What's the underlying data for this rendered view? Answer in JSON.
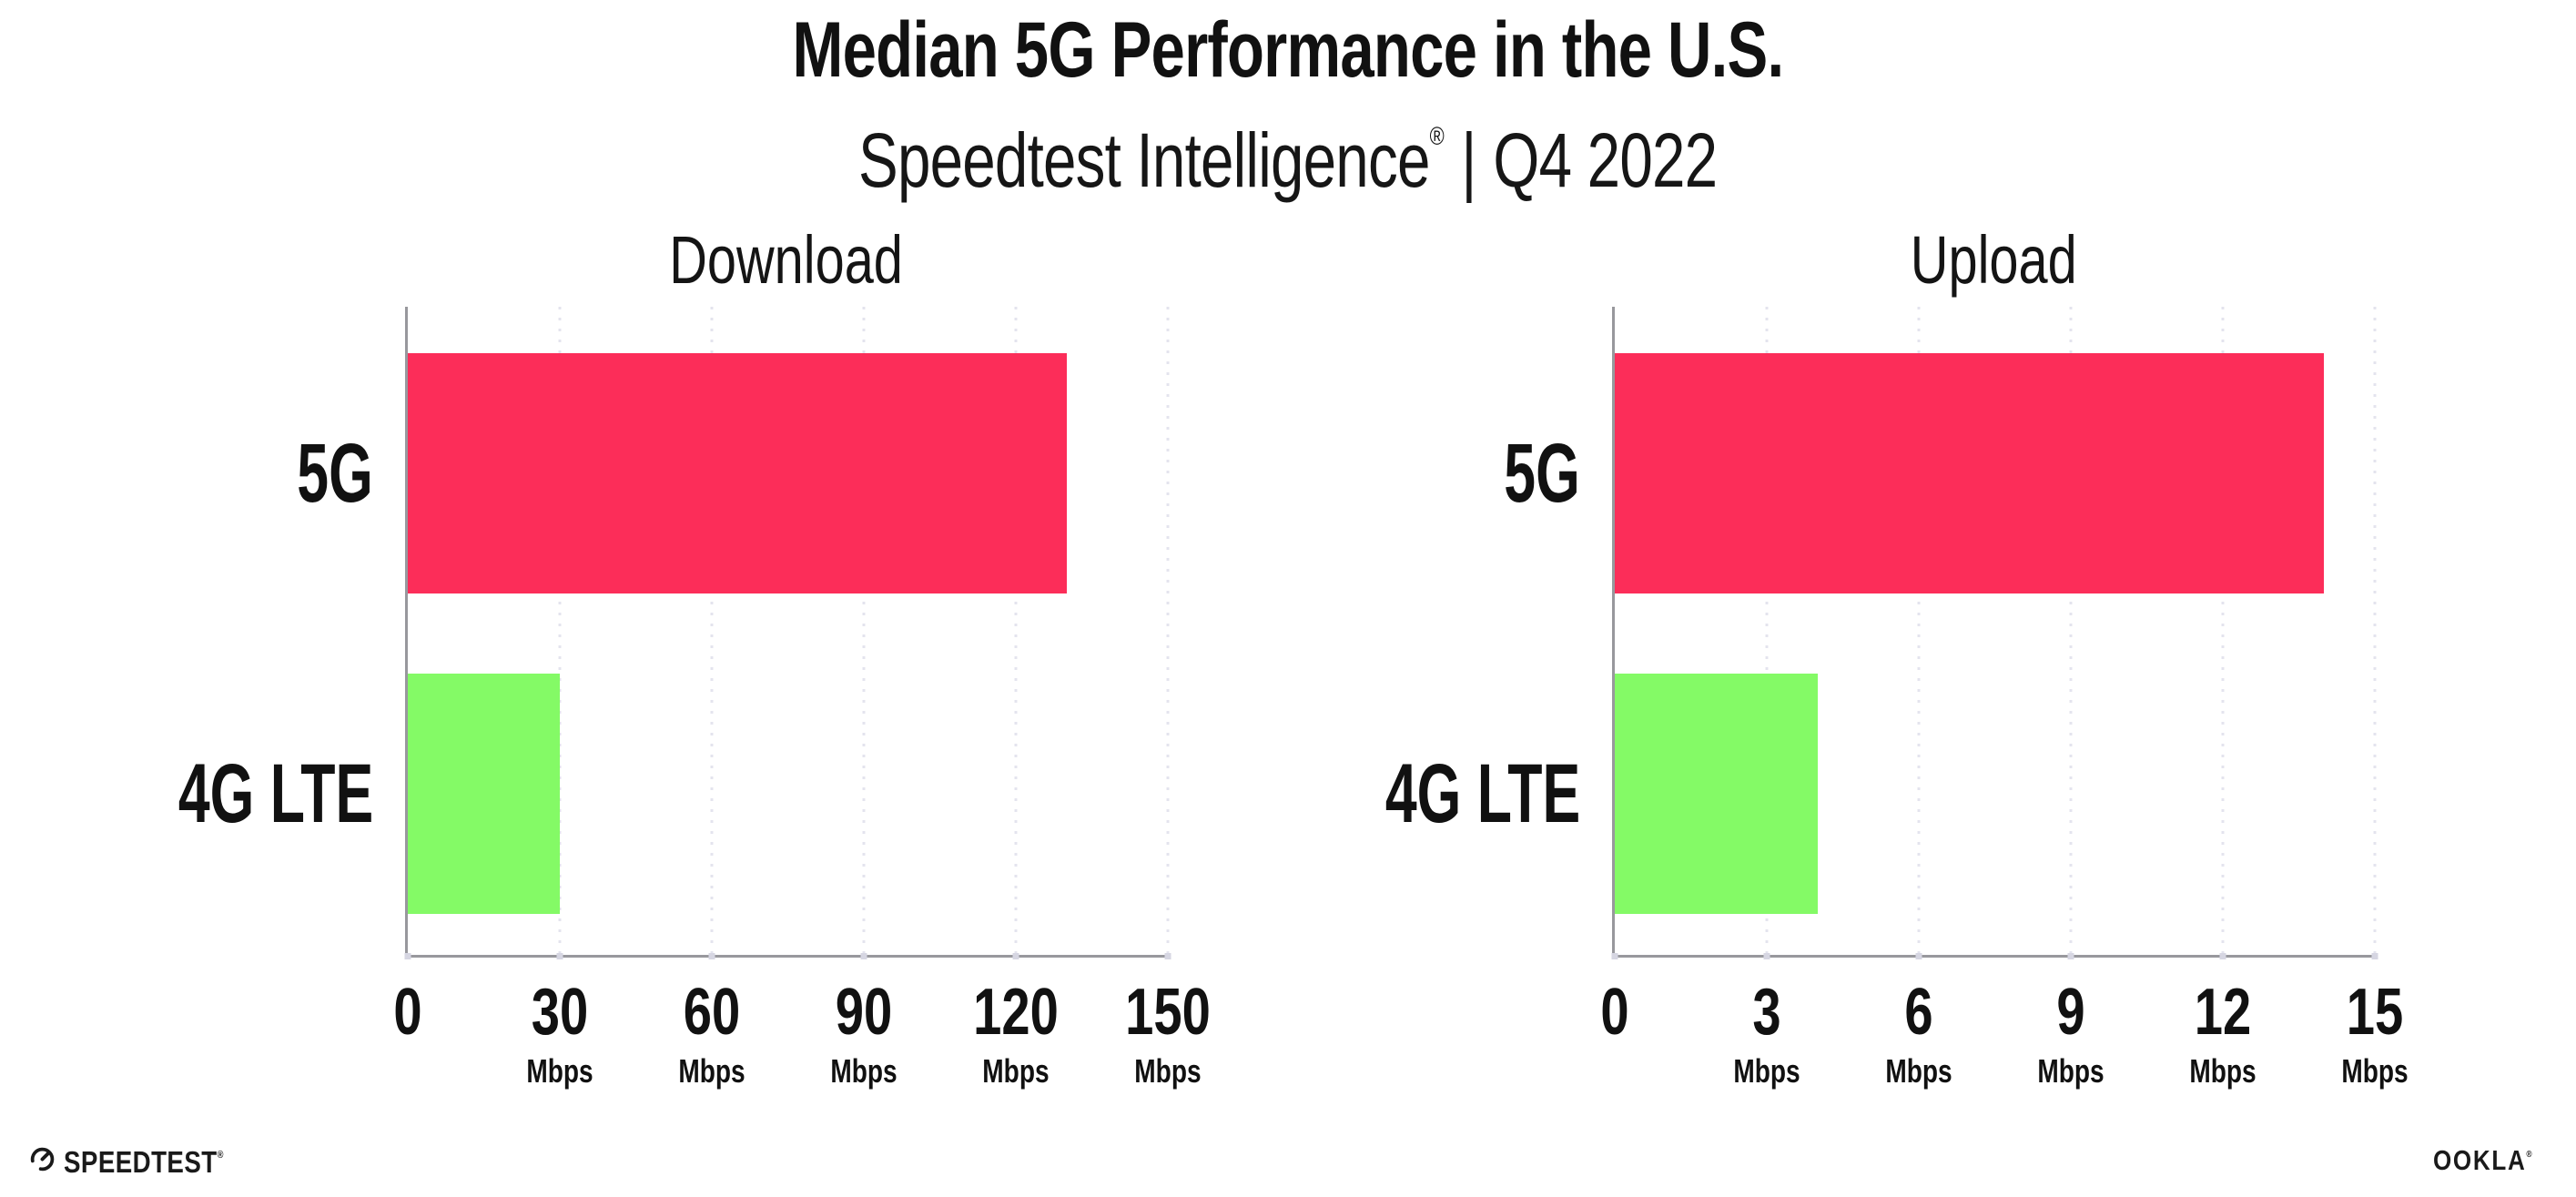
{
  "header": {
    "title": "Median 5G Performance in the U.S.",
    "subtitle_brand": "Speedtest Intelligence",
    "subtitle_reg": "®",
    "subtitle_sep": "|",
    "subtitle_period": "Q4 2022"
  },
  "colors": {
    "bar_5g": "#FC2D59",
    "bar_4g_lte": "#84FA66",
    "gridline": "#E4E4EE",
    "axis": "#98989D",
    "tick_dot": "#D6D6E2",
    "text": "#111111"
  },
  "chart_data": [
    {
      "type": "bar",
      "orientation": "horizontal",
      "title": "Download",
      "categories": [
        "5G",
        "4G LTE"
      ],
      "values": [
        130,
        30
      ],
      "unit": "Mbps",
      "xlabel": "",
      "ylabel": "",
      "xlim": [
        0,
        150
      ],
      "xticks": [
        0,
        30,
        60,
        90,
        120,
        150
      ],
      "bar_colors": [
        "#FC2D59",
        "#84FA66"
      ],
      "grid": "vertical-dotted",
      "legend": "none"
    },
    {
      "type": "bar",
      "orientation": "horizontal",
      "title": "Upload",
      "categories": [
        "5G",
        "4G LTE"
      ],
      "values": [
        14,
        4
      ],
      "unit": "Mbps",
      "xlabel": "",
      "ylabel": "",
      "xlim": [
        0,
        15
      ],
      "xticks": [
        0,
        3,
        6,
        9,
        12,
        15
      ],
      "bar_colors": [
        "#FC2D59",
        "#84FA66"
      ],
      "grid": "vertical-dotted",
      "legend": "none"
    }
  ],
  "footer": {
    "speedtest_label": "SPEEDTEST",
    "speedtest_reg": "®",
    "ookla_label": "OOKLA",
    "ookla_reg": "®"
  }
}
